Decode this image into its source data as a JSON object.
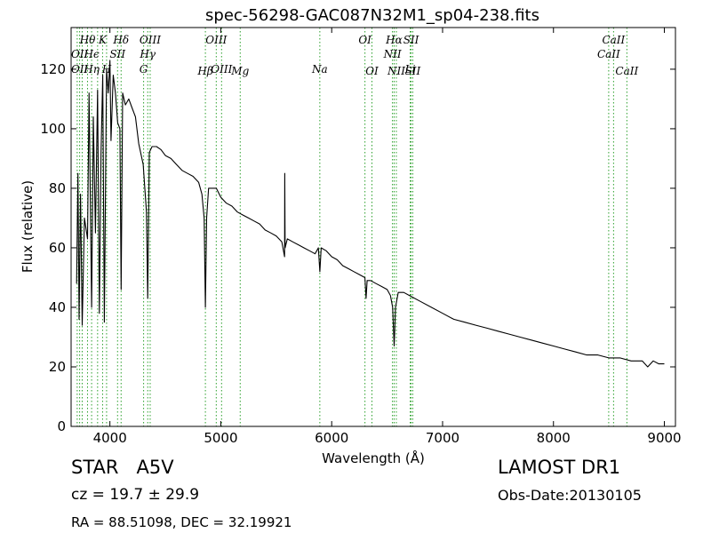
{
  "chart_data": {
    "type": "line",
    "title": "spec-56298-GAC087N32M1_sp04-238.fits",
    "xlabel": "Wavelength (Å)",
    "ylabel": "Flux (relative)",
    "xlim": [
      3650,
      9100
    ],
    "ylim": [
      0,
      134
    ],
    "xticks": [
      4000,
      5000,
      6000,
      7000,
      8000,
      9000
    ],
    "yticks": [
      0,
      20,
      40,
      60,
      80,
      100,
      120
    ],
    "grid": false,
    "line_color": "#000000",
    "marker_color": "#2ca02c",
    "series": [
      {
        "x": [
          3700,
          3712,
          3722,
          3735,
          3750,
          3770,
          3798,
          3812,
          3835,
          3850,
          3870,
          3889,
          3905,
          3920,
          3935,
          3950,
          3970,
          3985,
          4000,
          4010,
          4030,
          4050,
          4070,
          4090,
          4101,
          4115,
          4140,
          4170,
          4200,
          4230,
          4260,
          4300,
          4330,
          4341,
          4355,
          4380,
          4420,
          4460,
          4500,
          4550,
          4600,
          4650,
          4700,
          4750,
          4800,
          4830,
          4850,
          4861,
          4872,
          4890,
          4920,
          4960,
          5000,
          5050,
          5100,
          5150,
          5200,
          5250,
          5300,
          5350,
          5400,
          5450,
          5500,
          5550,
          5575,
          5577,
          5580,
          5600,
          5650,
          5700,
          5750,
          5800,
          5850,
          5880,
          5893,
          5905,
          5950,
          6000,
          6050,
          6100,
          6150,
          6200,
          6250,
          6300,
          6310,
          6320,
          6350,
          6400,
          6450,
          6500,
          6530,
          6550,
          6563,
          6575,
          6600,
          6650,
          6700,
          6800,
          6900,
          7000,
          7100,
          7200,
          7300,
          7400,
          7500,
          7600,
          7700,
          7800,
          7900,
          8000,
          8100,
          8200,
          8300,
          8400,
          8500,
          8600,
          8700,
          8800,
          8850,
          8900,
          8950,
          9000
        ],
        "y": [
          48,
          85,
          36,
          78,
          34,
          70,
          63,
          112,
          40,
          104,
          65,
          113,
          38,
          92,
          118,
          35,
          120,
          112,
          123,
          96,
          118,
          112,
          102,
          100,
          46,
          112,
          108,
          110,
          107,
          104,
          95,
          88,
          72,
          43,
          92,
          94,
          94,
          93,
          91,
          90,
          88,
          86,
          85,
          84,
          82,
          78,
          70,
          40,
          70,
          80,
          80,
          80,
          77,
          75,
          74,
          72,
          71,
          70,
          69,
          68,
          66,
          65,
          64,
          62,
          57,
          85,
          60,
          63,
          62,
          61,
          60,
          59,
          58,
          60,
          52,
          60,
          59,
          57,
          56,
          54,
          53,
          52,
          51,
          50,
          43,
          49,
          49,
          48,
          47,
          46,
          44,
          40,
          27,
          40,
          45,
          45,
          44,
          42,
          40,
          38,
          36,
          35,
          34,
          33,
          32,
          31,
          30,
          29,
          28,
          27,
          26,
          25,
          24,
          24,
          23,
          23,
          22,
          22,
          20,
          22,
          21,
          21
        ]
      }
    ],
    "line_markers": [
      {
        "label": "Hθ",
        "x": 3798,
        "row": 1
      },
      {
        "label": "K",
        "x": 3934,
        "row": 1
      },
      {
        "label": "Hδ",
        "x": 4101,
        "row": 1
      },
      {
        "label": "OIII",
        "x": 4363,
        "row": 1
      },
      {
        "label": "OIII",
        "x": 4959,
        "row": 1
      },
      {
        "label": "OI",
        "x": 6300,
        "row": 1
      },
      {
        "label": "Hα",
        "x": 6563,
        "row": 1
      },
      {
        "label": "SII",
        "x": 6716,
        "row": 1
      },
      {
        "label": "CaII",
        "x": 8542,
        "row": 1
      },
      {
        "label": "OII",
        "x": 3727,
        "row": 2
      },
      {
        "label": "Hϵ",
        "x": 3835,
        "row": 2
      },
      {
        "label": "SII",
        "x": 4069,
        "row": 2
      },
      {
        "label": "Hγ",
        "x": 4341,
        "row": 2
      },
      {
        "label": "NII",
        "x": 6548,
        "row": 2
      },
      {
        "label": "CaII",
        "x": 8498,
        "row": 2
      },
      {
        "label": "OII",
        "x": 3727,
        "row": 3
      },
      {
        "label": "Hη",
        "x": 3835,
        "row": 3
      },
      {
        "label": "H",
        "x": 3970,
        "row": 3
      },
      {
        "label": "G",
        "x": 4304,
        "row": 3
      },
      {
        "label": "OIII",
        "x": 5007,
        "row": 3
      },
      {
        "label": "Na",
        "x": 5893,
        "row": 3
      },
      {
        "label": "Li",
        "x": 6708,
        "row": 3
      },
      {
        "label": "Hβ",
        "x": 4861,
        "row": 4
      },
      {
        "label": "Mg",
        "x": 5175,
        "row": 4
      },
      {
        "label": "OI",
        "x": 6363,
        "row": 4
      },
      {
        "label": "NII",
        "x": 6583,
        "row": 4
      },
      {
        "label": "SII",
        "x": 6731,
        "row": 4
      },
      {
        "label": "CaII",
        "x": 8662,
        "row": 4
      }
    ],
    "marker_lines_x": [
      3705,
      3727,
      3750,
      3798,
      3835,
      3889,
      3934,
      3970,
      4069,
      4101,
      4304,
      4341,
      4363,
      4861,
      4959,
      5007,
      5175,
      5893,
      6300,
      6363,
      6548,
      6563,
      6583,
      6708,
      6716,
      6731,
      8498,
      8542,
      8662
    ]
  },
  "footer": {
    "classification": "STAR   A5V",
    "cz": "cz = 19.7 ± 29.9",
    "coords": "RA = 88.51098, DEC = 32.19921",
    "survey": "LAMOST DR1",
    "obs_date": "Obs-Date:20130105"
  }
}
